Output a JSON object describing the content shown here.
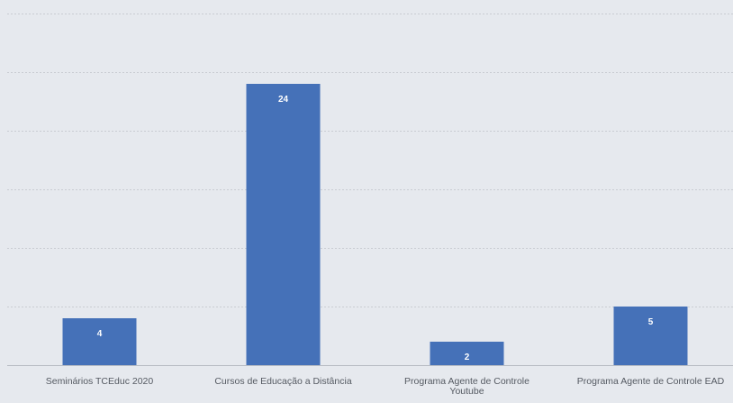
{
  "chart_data": {
    "type": "bar",
    "categories": [
      [
        "Seminários TCEduc 2020"
      ],
      [
        "Cursos de Educação a Distância"
      ],
      [
        "Programa Agente de Controle",
        "Youtube"
      ],
      [
        "Programa Agente de Controle EAD"
      ]
    ],
    "values": [
      4,
      24,
      2,
      5
    ],
    "data_labels": [
      "4",
      "24",
      "2",
      "5"
    ],
    "title": "",
    "xlabel": "",
    "ylabel": "",
    "ylim": [
      0,
      30
    ],
    "y_gridlines": [
      5,
      10,
      15,
      20,
      25,
      30
    ],
    "grid": true,
    "legend": "none",
    "colors": {
      "bar": "#4571b8",
      "background": "#e6e9ee",
      "gridline": "#c9ccd2",
      "label_text": "#555a62"
    }
  }
}
